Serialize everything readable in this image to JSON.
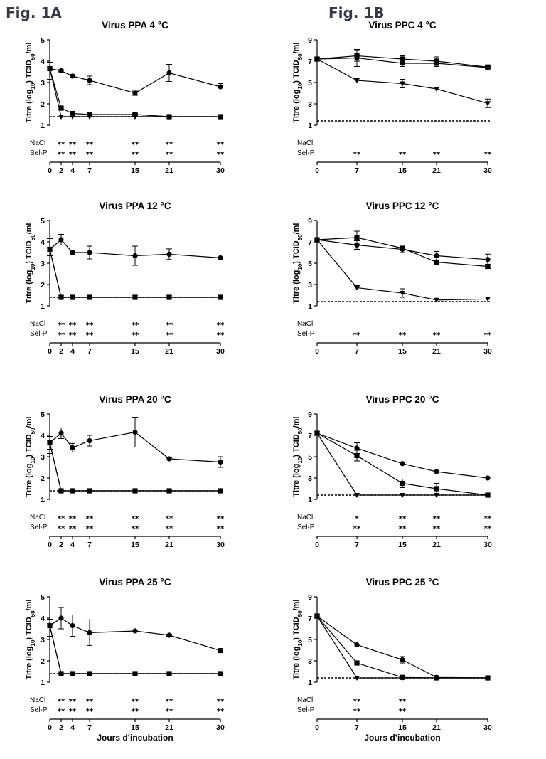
{
  "figure_labels": {
    "a": "Fig. 1A",
    "b": "Fig. 1B"
  },
  "row_labels": {
    "nacl": "NaCl",
    "selp": "Sel-P"
  },
  "y_label": "Titre (log10) TCID50/ml",
  "x_label": "Jours d’incubation",
  "chart_data": [
    {
      "type": "line",
      "title": "Virus PPA  4 °C",
      "ylim": [
        1,
        5
      ],
      "yticks": [
        1,
        2,
        3,
        4,
        5
      ],
      "xticks": [
        0,
        2,
        4,
        7,
        15,
        21,
        30
      ],
      "detection_limit": 1.4,
      "series": [
        {
          "marker": "circle",
          "x": [
            0,
            2,
            4,
            7,
            15,
            21,
            30
          ],
          "y": [
            3.65,
            3.55,
            3.3,
            3.1,
            2.5,
            3.45,
            2.8
          ],
          "err": [
            0.5,
            0.05,
            0.08,
            0.2,
            0.1,
            0.4,
            0.15
          ]
        },
        {
          "marker": "square",
          "x": [
            0,
            2,
            4,
            7,
            15,
            21,
            30
          ],
          "y": [
            3.65,
            1.8,
            1.55,
            1.5,
            1.5,
            1.4,
            1.4
          ],
          "err": [
            0.3,
            0.05,
            0.05,
            0.05,
            0.05,
            0,
            0
          ]
        },
        {
          "marker": "triangle",
          "x": [
            0,
            2,
            4,
            7,
            15,
            21,
            30
          ],
          "y": [
            3.65,
            1.4,
            1.4,
            1.4,
            1.4,
            1.4,
            1.4
          ],
          "err": [
            0.3,
            0,
            0,
            0,
            0,
            0,
            0
          ]
        }
      ],
      "significance": {
        "nacl": [
          [
            "2",
            "**"
          ],
          [
            "4",
            "**"
          ],
          [
            "7",
            "**"
          ],
          [
            "15",
            "**"
          ],
          [
            "21",
            "**"
          ],
          [
            "30",
            "**"
          ]
        ],
        "selp": [
          [
            "2",
            "**"
          ],
          [
            "4",
            "**"
          ],
          [
            "7",
            "**"
          ],
          [
            "15",
            "**"
          ],
          [
            "21",
            "**"
          ],
          [
            "30",
            "**"
          ]
        ]
      }
    },
    {
      "type": "line",
      "title": "Virus PPA  12 °C",
      "ylim": [
        1,
        5
      ],
      "yticks": [
        1,
        2,
        3,
        4,
        5
      ],
      "xticks": [
        0,
        2,
        4,
        7,
        15,
        21,
        30
      ],
      "detection_limit": 1.4,
      "series": [
        {
          "marker": "circle",
          "x": [
            0,
            2,
            4,
            7,
            15,
            21,
            30
          ],
          "y": [
            3.65,
            4.1,
            3.5,
            3.5,
            3.35,
            3.42,
            3.25
          ],
          "err": [
            0.5,
            0.25,
            0.1,
            0.3,
            0.45,
            0.25,
            0.05
          ]
        },
        {
          "marker": "square",
          "x": [
            0,
            2,
            4,
            7,
            15,
            21,
            30
          ],
          "y": [
            3.65,
            1.4,
            1.4,
            1.4,
            1.4,
            1.4,
            1.4
          ],
          "err": [
            0.3,
            0,
            0,
            0,
            0,
            0,
            0
          ]
        },
        {
          "marker": "triangle",
          "x": [
            0,
            2,
            4,
            7,
            15,
            21,
            30
          ],
          "y": [
            3.65,
            1.4,
            1.4,
            1.4,
            1.4,
            1.4,
            1.4
          ],
          "err": [
            0.3,
            0,
            0,
            0,
            0,
            0,
            0
          ]
        }
      ],
      "significance": {
        "nacl": [
          [
            "2",
            "**"
          ],
          [
            "4",
            "**"
          ],
          [
            "7",
            "**"
          ],
          [
            "15",
            "**"
          ],
          [
            "21",
            "**"
          ],
          [
            "30",
            "**"
          ]
        ],
        "selp": [
          [
            "2",
            "**"
          ],
          [
            "4",
            "**"
          ],
          [
            "7",
            "**"
          ],
          [
            "15",
            "**"
          ],
          [
            "21",
            "**"
          ],
          [
            "30",
            "**"
          ]
        ]
      }
    },
    {
      "type": "line",
      "title": "Virus PPA  20 °C",
      "ylim": [
        1,
        5
      ],
      "yticks": [
        1,
        2,
        3,
        4,
        5
      ],
      "xticks": [
        0,
        2,
        4,
        7,
        15,
        21,
        30
      ],
      "detection_limit": 1.4,
      "series": [
        {
          "marker": "circle",
          "x": [
            0,
            2,
            4,
            7,
            15,
            21,
            30
          ],
          "y": [
            3.65,
            4.1,
            3.42,
            3.75,
            4.15,
            2.9,
            2.75
          ],
          "err": [
            0.5,
            0.25,
            0.2,
            0.25,
            0.7,
            0.05,
            0.25
          ]
        },
        {
          "marker": "square",
          "x": [
            0,
            2,
            4,
            7,
            15,
            21,
            30
          ],
          "y": [
            3.65,
            1.4,
            1.4,
            1.4,
            1.4,
            1.4,
            1.4
          ],
          "err": [
            0.3,
            0,
            0,
            0,
            0,
            0,
            0
          ]
        },
        {
          "marker": "triangle",
          "x": [
            0,
            2,
            4,
            7,
            15,
            21,
            30
          ],
          "y": [
            3.65,
            1.4,
            1.4,
            1.4,
            1.4,
            1.4,
            1.4
          ],
          "err": [
            0.3,
            0,
            0,
            0,
            0,
            0,
            0
          ]
        }
      ],
      "significance": {
        "nacl": [
          [
            "2",
            "**"
          ],
          [
            "4",
            "**"
          ],
          [
            "7",
            "**"
          ],
          [
            "15",
            "**"
          ],
          [
            "21",
            "**"
          ],
          [
            "30",
            "**"
          ]
        ],
        "selp": [
          [
            "2",
            "**"
          ],
          [
            "4",
            "**"
          ],
          [
            "7",
            "**"
          ],
          [
            "15",
            "**"
          ],
          [
            "21",
            "**"
          ],
          [
            "30",
            "**"
          ]
        ]
      }
    },
    {
      "type": "line",
      "title": "Virus PPA  25 °C",
      "ylim": [
        1,
        5
      ],
      "yticks": [
        1,
        2,
        3,
        4,
        5
      ],
      "xticks": [
        0,
        2,
        4,
        7,
        15,
        21,
        30
      ],
      "detection_limit": 1.4,
      "series": [
        {
          "marker": "circle",
          "x": [
            0,
            2,
            4,
            7,
            15,
            21,
            30
          ],
          "y": [
            3.65,
            4.0,
            3.65,
            3.32,
            3.4,
            3.2,
            2.48
          ],
          "err": [
            0.5,
            0.5,
            0.5,
            0.6,
            0.05,
            0.05,
            0.1
          ]
        },
        {
          "marker": "square",
          "x": [
            0,
            2,
            4,
            7,
            15,
            21,
            30
          ],
          "y": [
            3.65,
            1.4,
            1.4,
            1.4,
            1.4,
            1.4,
            1.4
          ],
          "err": [
            0.3,
            0,
            0,
            0,
            0,
            0,
            0
          ]
        },
        {
          "marker": "triangle",
          "x": [
            0,
            2,
            4,
            7,
            15,
            21,
            30
          ],
          "y": [
            3.65,
            1.4,
            1.4,
            1.4,
            1.4,
            1.4,
            1.4
          ],
          "err": [
            0.3,
            0,
            0,
            0,
            0,
            0,
            0
          ]
        }
      ],
      "significance": {
        "nacl": [
          [
            "2",
            "**"
          ],
          [
            "4",
            "**"
          ],
          [
            "7",
            "**"
          ],
          [
            "15",
            "**"
          ],
          [
            "21",
            "**"
          ],
          [
            "30",
            "**"
          ]
        ],
        "selp": [
          [
            "2",
            "**"
          ],
          [
            "4",
            "**"
          ],
          [
            "7",
            "**"
          ],
          [
            "15",
            "**"
          ],
          [
            "21",
            "**"
          ],
          [
            "30",
            "**"
          ]
        ]
      }
    },
    {
      "type": "line",
      "title": "Virus PPC  4 °C",
      "ylim": [
        1,
        9
      ],
      "yticks": [
        1,
        3,
        5,
        7,
        9
      ],
      "xticks": [
        0,
        7,
        15,
        21,
        30
      ],
      "detection_limit": 1.4,
      "series": [
        {
          "marker": "circle",
          "x": [
            0,
            7,
            15,
            21,
            30
          ],
          "y": [
            7.2,
            7.3,
            6.8,
            6.8,
            6.4
          ],
          "err": [
            0,
            0.8,
            0.3,
            0.3,
            0.1
          ]
        },
        {
          "marker": "square",
          "x": [
            0,
            7,
            15,
            21,
            30
          ],
          "y": [
            7.2,
            7.5,
            7.2,
            7.0,
            6.45
          ],
          "err": [
            0,
            0.5,
            0.3,
            0.4,
            0.1
          ]
        },
        {
          "marker": "triangle",
          "x": [
            0,
            7,
            15,
            21,
            30
          ],
          "y": [
            7.2,
            5.2,
            4.9,
            4.4,
            3.05
          ],
          "err": [
            0,
            0,
            0.4,
            0,
            0.4
          ]
        }
      ],
      "significance": {
        "nacl": [],
        "selp": [
          [
            "7",
            "**"
          ],
          [
            "15",
            "**"
          ],
          [
            "21",
            "**"
          ],
          [
            "30",
            "**"
          ]
        ]
      }
    },
    {
      "type": "line",
      "title": "Virus PPC  12 °C",
      "ylim": [
        1,
        9
      ],
      "yticks": [
        1,
        3,
        5,
        7,
        9
      ],
      "xticks": [
        0,
        7,
        15,
        21,
        30
      ],
      "detection_limit": 1.4,
      "series": [
        {
          "marker": "circle",
          "x": [
            0,
            7,
            15,
            21,
            30
          ],
          "y": [
            7.2,
            6.7,
            6.3,
            5.7,
            5.35
          ],
          "err": [
            0,
            0.4,
            0.3,
            0.4,
            0.5
          ]
        },
        {
          "marker": "square",
          "x": [
            0,
            7,
            15,
            21,
            30
          ],
          "y": [
            7.2,
            7.4,
            6.4,
            5.1,
            4.7
          ],
          "err": [
            0,
            0.6,
            0.2,
            0.2,
            0.2
          ]
        },
        {
          "marker": "triangle",
          "x": [
            0,
            7,
            15,
            21,
            30
          ],
          "y": [
            7.2,
            2.7,
            2.2,
            1.55,
            1.65
          ],
          "err": [
            0,
            0.2,
            0.4,
            0,
            0
          ]
        }
      ],
      "significance": {
        "nacl": [],
        "selp": [
          [
            "7",
            "**"
          ],
          [
            "15",
            "**"
          ],
          [
            "21",
            "**"
          ],
          [
            "30",
            "**"
          ]
        ]
      }
    },
    {
      "type": "line",
      "title": "Virus PPC  20 °C",
      "ylim": [
        1,
        9
      ],
      "yticks": [
        1,
        3,
        5,
        7,
        9
      ],
      "xticks": [
        0,
        7,
        15,
        21,
        30
      ],
      "detection_limit": 1.4,
      "series": [
        {
          "marker": "circle",
          "x": [
            0,
            7,
            15,
            21,
            30
          ],
          "y": [
            7.2,
            5.8,
            4.35,
            3.6,
            3.0
          ],
          "err": [
            0,
            0.5,
            0,
            0,
            0
          ]
        },
        {
          "marker": "square",
          "x": [
            0,
            7,
            15,
            21,
            30
          ],
          "y": [
            7.2,
            5.1,
            2.5,
            2.0,
            1.4
          ],
          "err": [
            0,
            0.5,
            0.4,
            0.5,
            0
          ]
        },
        {
          "marker": "triangle",
          "x": [
            0,
            7,
            15,
            21,
            30
          ],
          "y": [
            7.2,
            1.4,
            1.4,
            1.4,
            1.4
          ],
          "err": [
            0,
            0,
            0,
            0,
            0
          ]
        }
      ],
      "significance": {
        "nacl": [
          [
            "7",
            "*"
          ],
          [
            "15",
            "**"
          ],
          [
            "21",
            "**"
          ],
          [
            "30",
            "**"
          ]
        ],
        "selp": [
          [
            "7",
            "**"
          ],
          [
            "15",
            "**"
          ],
          [
            "21",
            "**"
          ],
          [
            "30",
            "**"
          ]
        ]
      }
    },
    {
      "type": "line",
      "title": "Virus PPC  25 °C",
      "ylim": [
        1,
        9
      ],
      "yticks": [
        1,
        3,
        5,
        7,
        9
      ],
      "xticks": [
        0,
        7,
        15,
        21,
        30
      ],
      "detection_limit": 1.4,
      "series": [
        {
          "marker": "circle",
          "x": [
            0,
            7,
            15,
            21,
            30
          ],
          "y": [
            7.2,
            4.5,
            3.1,
            1.45,
            1.4
          ],
          "err": [
            0,
            0,
            0.3,
            0,
            0
          ]
        },
        {
          "marker": "square",
          "x": [
            0,
            7,
            15,
            21,
            30
          ],
          "y": [
            7.2,
            2.8,
            1.45,
            1.4,
            1.4
          ],
          "err": [
            0,
            0,
            0,
            0,
            0
          ]
        },
        {
          "marker": "triangle",
          "x": [
            0,
            7,
            15,
            21,
            30
          ],
          "y": [
            7.2,
            1.4,
            1.4,
            1.4,
            1.4
          ],
          "err": [
            0,
            0,
            0,
            0,
            0
          ]
        }
      ],
      "significance": {
        "nacl": [
          [
            "7",
            "**"
          ],
          [
            "15",
            "**"
          ]
        ],
        "selp": [
          [
            "7",
            "**"
          ],
          [
            "15",
            "**"
          ]
        ]
      }
    }
  ]
}
